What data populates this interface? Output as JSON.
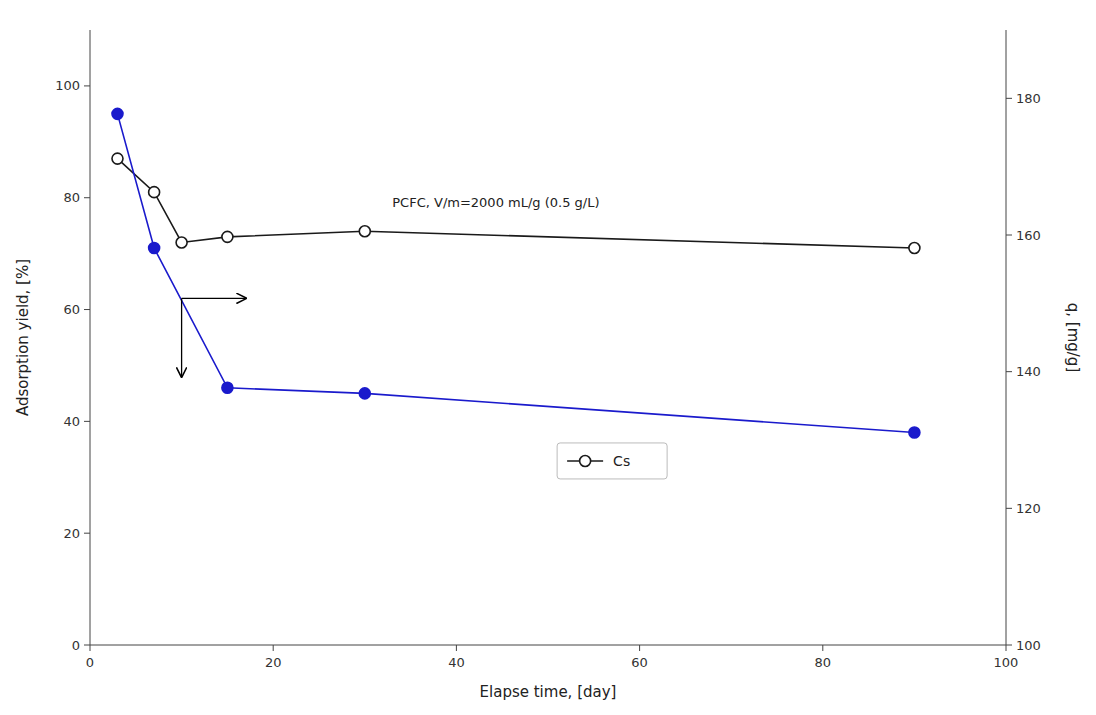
{
  "chart_data": {
    "type": "line",
    "x_label": "Elapse time, [day]",
    "y_label": "Adsorption yield, [%]",
    "y2_label": "q, [mg/g]",
    "series": [
      {
        "name": "Cs",
        "color": "#1a1a1a",
        "marker": "circle-open",
        "x": [
          3,
          7,
          10,
          15,
          30,
          90
        ],
        "values": [
          87,
          81,
          72,
          73,
          74,
          71
        ]
      },
      {
        "color": "#1a1acc",
        "marker": "circle",
        "x": [
          3,
          7,
          15,
          30,
          90
        ],
        "values": [
          95,
          71,
          46,
          45,
          38
        ]
      }
    ],
    "xlim": [
      0,
      100
    ],
    "xticks": [
      0,
      20,
      40,
      60,
      80,
      100
    ],
    "ylim": [
      0,
      110
    ],
    "yticks": [
      0,
      20,
      40,
      60,
      80,
      100
    ],
    "y2lim": [
      100,
      190
    ],
    "y2ticks": [
      100,
      120,
      140,
      160,
      180
    ],
    "grid": false,
    "legend": "center",
    "annotations": [
      {
        "text": "PCFC, V/m=2000 mL/g (0.5 g/L)",
        "x": 33,
        "y": 79
      }
    ],
    "arrows": [
      {
        "from": [
          10,
          62
        ],
        "to": [
          10,
          48
        ]
      },
      {
        "from": [
          10,
          62
        ],
        "to": [
          17,
          62
        ]
      }
    ]
  }
}
